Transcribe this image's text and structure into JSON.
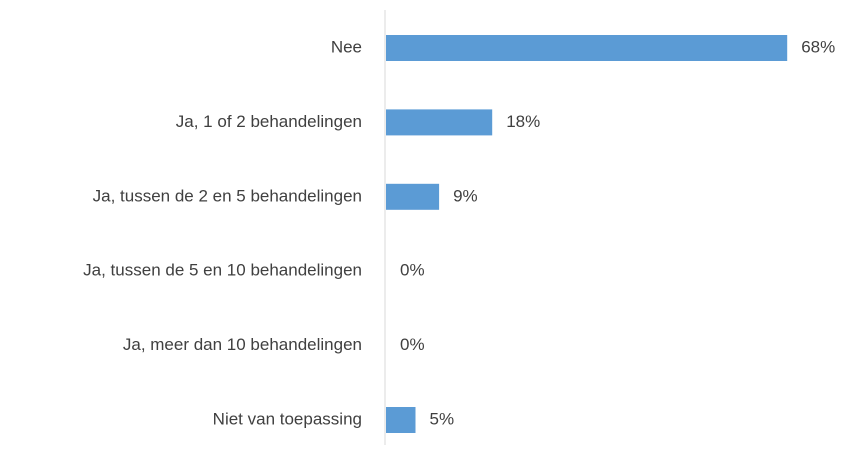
{
  "chart_data": {
    "type": "hbar",
    "categories": [
      "Nee",
      "Ja, 1 of 2 behandelingen",
      "Ja, tussen de 2 en 5 behandelingen",
      "Ja, tussen de 5 en 10 behandelingen",
      "Ja, meer dan 10 behandelingen",
      "Niet van toepassing"
    ],
    "values": [
      68,
      18,
      9,
      0,
      0,
      5
    ],
    "value_labels": [
      "68%",
      "18%",
      "9%",
      "0%",
      "0%",
      "5%"
    ],
    "color": "#5b9bd5"
  }
}
